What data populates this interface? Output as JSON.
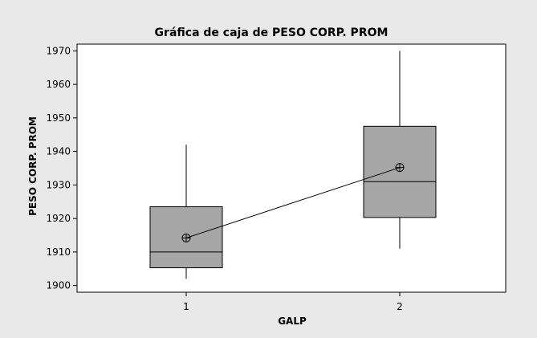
{
  "chart_data": {
    "type": "boxplot",
    "title": "Gráfica de caja de PESO CORP. PROM",
    "xlabel": "GALP",
    "ylabel": "PESO CORP. PROM",
    "ylim": [
      1898,
      1972
    ],
    "yticks": [
      1900,
      1910,
      1920,
      1930,
      1940,
      1950,
      1960,
      1970
    ],
    "categories": [
      "1",
      "2"
    ],
    "boxes": [
      {
        "category": "1",
        "min": 1902,
        "q1": 1905.3,
        "median": 1910,
        "q3": 1923.5,
        "max": 1942,
        "mean": 1914.2
      },
      {
        "category": "2",
        "min": 1911,
        "q1": 1920.3,
        "median": 1931,
        "q3": 1947.5,
        "max": 1970,
        "mean": 1935.2
      }
    ],
    "mean_connect_line": true,
    "grid": false,
    "legend": "none",
    "colors": {
      "box_fill": "#a6a6a6",
      "outer_background": "#e9e9e9",
      "plot_background": "#ffffff",
      "line": "#000000"
    }
  }
}
